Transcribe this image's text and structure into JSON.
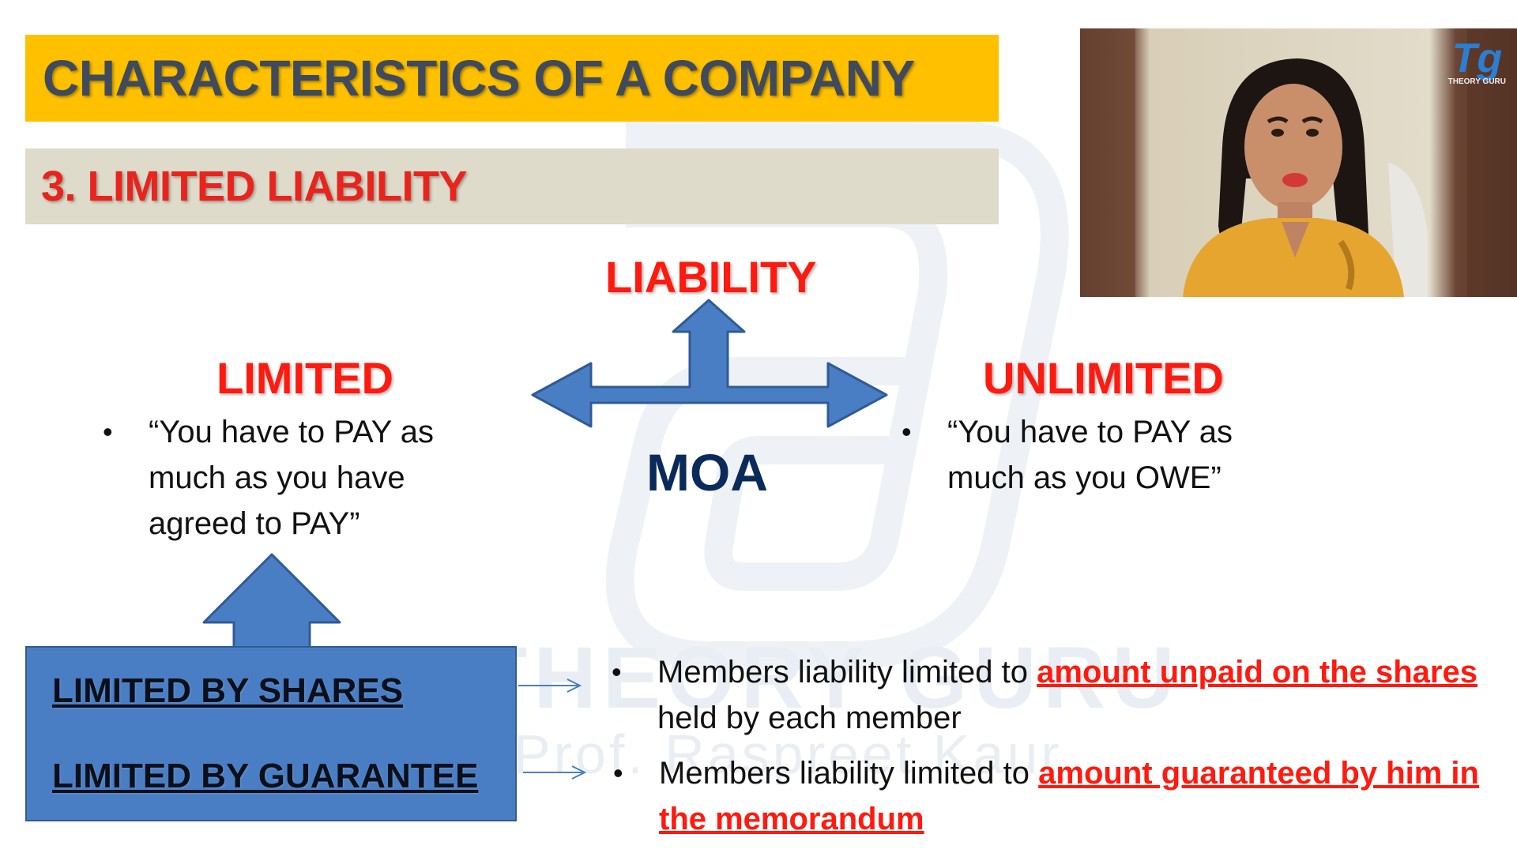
{
  "header": {
    "title": "CHARACTERISTICS OF A COMPANY",
    "subtitle": "3. LIMITED LIABILITY"
  },
  "watermark": {
    "brand": "THEORY GURU",
    "author": "Prof. Raspreet Kaur"
  },
  "video": {
    "logo_mark": "Tg",
    "logo_text": "THEORY GURU"
  },
  "diagram": {
    "center_top": "LIABILITY",
    "center_bottom": "MOA",
    "left_label": "LIMITED",
    "right_label": "UNLIMITED",
    "left_quote": "“You have to PAY as much as you have agreed to PAY”",
    "right_quote": "“You have to PAY as much as you OWE”"
  },
  "types": {
    "shares_label": "LIMITED BY SHARES",
    "guarantee_label": "LIMITED BY GUARANTEE"
  },
  "explanations": {
    "shares_prefix": "Members liability limited to ",
    "shares_highlight": "amount unpaid on the shares",
    "shares_suffix": " held by each member",
    "guarantee_prefix": "Members liability limited to ",
    "guarantee_highlight": "amount guaranteed by him in the memorandum"
  },
  "colors": {
    "title_bar": "#ffc000",
    "subtitle_bar": "#dedbcb",
    "accent_red": "#ff1a0f",
    "arrow_blue": "#4a7ec4",
    "moa_navy": "#0b2a5c"
  }
}
